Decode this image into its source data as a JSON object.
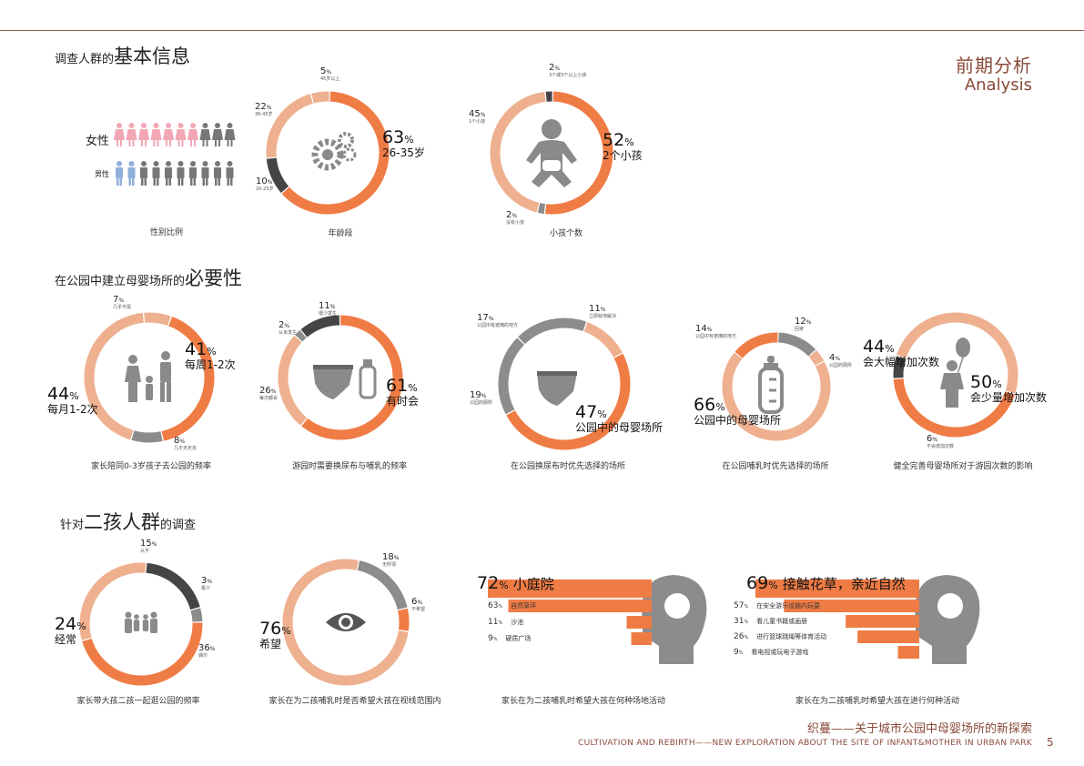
{
  "header": {
    "title_cn": "前期分析",
    "title_en": "Analysis"
  },
  "sections": {
    "s1": {
      "pre": "调查人群的",
      "big": "基本信息",
      "post": ""
    },
    "s2": {
      "pre": "在公园中建立母婴场所的",
      "big": "必要性",
      "post": ""
    },
    "s3": {
      "pre": "针对",
      "big": "二孩人群",
      "post": "的调查"
    }
  },
  "gender": {
    "female_label": "女性",
    "male_label": "男性",
    "caption": "性别比例",
    "female_pink": 7,
    "female_total": 10,
    "male_blue": 2,
    "male_total": 10
  },
  "footer": {
    "title_cn": "织蔓——关于城市公园中母婴场所的新探索",
    "title_en": "CULTIVATION AND REBIRTH——NEW EXPLORATION ABOUT THE SITE OF INFANT&MOTHER IN URBAN PARK",
    "page": "5"
  },
  "colors": {
    "orange": "#f07c45",
    "light": "#eeb08f",
    "dark": "#454545",
    "grey": "#8c8c8c",
    "pink": "#f2a7b4",
    "blue": "#8fb0dc"
  },
  "chart_data": [
    {
      "type": "pie",
      "id": "age",
      "caption": "年龄段",
      "slices": [
        {
          "value": 5,
          "label": "5",
          "sub": "45岁以上",
          "color": "light"
        },
        {
          "value": 63,
          "label": "63",
          "sub": "26-35岁",
          "color": "orange",
          "big": true
        },
        {
          "value": 10,
          "label": "10",
          "sub": "20-25岁",
          "color": "dark"
        },
        {
          "value": 22,
          "label": "22",
          "sub": "36-45岁",
          "color": "light"
        }
      ]
    },
    {
      "type": "pie",
      "id": "kids",
      "caption": "小孩个数",
      "slices": [
        {
          "value": 2,
          "label": "2",
          "sub": "3个或3个以上小孩",
          "color": "dark"
        },
        {
          "value": 52,
          "label": "52",
          "sub": "2个小孩",
          "color": "orange",
          "big": true
        },
        {
          "value": 2,
          "label": "2",
          "sub": "没有小孩",
          "color": "grey"
        },
        {
          "value": 45,
          "label": "45",
          "sub": "1个小孩",
          "color": "light"
        }
      ]
    },
    {
      "type": "pie",
      "id": "freq",
      "caption": "家长陪同0-3岁孩子去公园的频率",
      "slices": [
        {
          "value": 41,
          "label": "41",
          "sub": "每周1-2次",
          "color": "orange",
          "big": true
        },
        {
          "value": 8,
          "label": "8",
          "sub": "几乎天天去",
          "color": "grey"
        },
        {
          "value": 44,
          "label": "44",
          "sub": "每月1-2次",
          "color": "light",
          "big": true
        },
        {
          "value": 7,
          "label": "7",
          "sub": "几乎不需",
          "color": "light"
        }
      ]
    },
    {
      "type": "pie",
      "id": "diaper",
      "caption": "游园时需要换尿布与哺乳的频率",
      "slices": [
        {
          "value": 11,
          "label": "11",
          "sub": "很少发生",
          "color": "dark"
        },
        {
          "value": 61,
          "label": "61",
          "sub": "有时会",
          "color": "orange",
          "big": true
        },
        {
          "value": 26,
          "label": "26",
          "sub": "每次都会",
          "color": "light"
        },
        {
          "value": 2,
          "label": "2",
          "sub": "从未发生",
          "color": "grey"
        }
      ]
    },
    {
      "type": "pie",
      "id": "change_place",
      "caption": "在公园换尿布时优先选择的场所",
      "slices": [
        {
          "value": 11,
          "label": "11",
          "sub": "立即就地解决",
          "color": "light"
        },
        {
          "value": 47,
          "label": "47",
          "sub": "公园中的母婴场所",
          "color": "orange",
          "big": true
        },
        {
          "value": 19,
          "label": "19",
          "sub": "公园的厕所",
          "color": "grey"
        },
        {
          "value": 17,
          "label": "17",
          "sub": "公园中有遮掩的地方",
          "color": "grey"
        }
      ]
    },
    {
      "type": "pie",
      "id": "feed_place",
      "caption": "在公园哺乳时优先选择的场所",
      "slices": [
        {
          "value": 12,
          "label": "12",
          "sub": "回家",
          "color": "grey"
        },
        {
          "value": 4,
          "label": "4",
          "sub": "公园的厕所",
          "color": "light"
        },
        {
          "value": 66,
          "label": "66",
          "sub": "公园中的母婴场所",
          "color": "light",
          "big": true
        },
        {
          "value": 14,
          "label": "14",
          "sub": "公园中有遮掩的地方",
          "color": "orange"
        }
      ]
    },
    {
      "type": "pie",
      "id": "visits",
      "caption": "健全完善母婴场所对于游园次数的影响",
      "slices": [
        {
          "value": 44,
          "label": "44",
          "sub": "会大幅增加次数",
          "color": "orange",
          "big": true
        },
        {
          "value": 6,
          "label": "6",
          "sub": "不会增加次数",
          "color": "dark"
        },
        {
          "value": 50,
          "label": "50",
          "sub": "会少量增加次数",
          "color": "light",
          "big": true
        }
      ]
    },
    {
      "type": "pie",
      "id": "together",
      "caption": "家长带大孩二孩一起逛公园的频率",
      "slices": [
        {
          "value": 15,
          "label": "15",
          "sub": "从不",
          "color": "dark"
        },
        {
          "value": 3,
          "label": "3",
          "sub": "极少",
          "color": "grey"
        },
        {
          "value": 36,
          "label": "36",
          "sub": "偶尔",
          "color": "orange"
        },
        {
          "value": 24,
          "label": "24",
          "sub": "经常",
          "color": "light",
          "big": true
        }
      ]
    },
    {
      "type": "pie",
      "id": "sight",
      "caption": "家长在为二孩哺乳时是否希望大孩在视线范围内",
      "slices": [
        {
          "value": 18,
          "label": "18",
          "sub": "无所谓",
          "color": "grey"
        },
        {
          "value": 6,
          "label": "6",
          "sub": "不希望",
          "color": "orange"
        },
        {
          "value": 76,
          "label": "76",
          "sub": "希望",
          "color": "light",
          "big": true
        }
      ]
    },
    {
      "type": "bar",
      "id": "venue",
      "caption": "家长在为二孩哺乳时希望大孩在何种场地活动",
      "title_value": "72",
      "title_label": "小庭院",
      "categories": [
        "小庭院",
        "自然草坪",
        "沙池",
        "硬质广场"
      ],
      "values": [
        72,
        63,
        11,
        9
      ]
    },
    {
      "type": "bar",
      "id": "activity",
      "caption": "家长在为二孩哺乳时希望大孩在进行何种活动",
      "title_value": "69",
      "title_label": "接触花草，亲近自然",
      "categories": [
        "接触花草，亲近自然",
        "在安全游乐设施内玩耍",
        "看儿童书籍或画册",
        "进行篮球跳绳等体育活动",
        "看电视或玩电子游戏"
      ],
      "values": [
        69,
        57,
        31,
        26,
        9
      ]
    }
  ]
}
